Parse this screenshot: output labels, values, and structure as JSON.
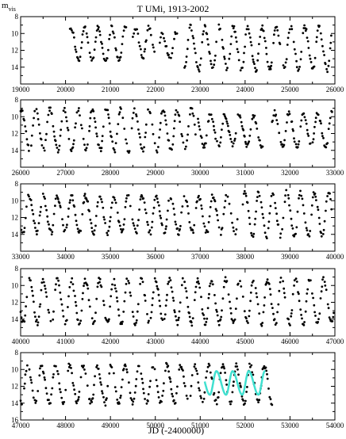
{
  "chart_data": {
    "type": "scatter",
    "title": "T UMi, 1913-2002",
    "ylabel_main": "m",
    "ylabel_sub": "vis",
    "xlabel": "JD (-2400000)",
    "ylim": [
      16,
      8
    ],
    "y_ticks": [
      8,
      10,
      12,
      14,
      16
    ],
    "grid": false,
    "legend": "none",
    "colors": {
      "points": "#000000",
      "model_curve": "#40e0d0"
    },
    "panels": [
      {
        "xlim": [
          19000,
          26000
        ],
        "x_ticks": [
          19000,
          20000,
          21000,
          22000,
          23000,
          24000,
          25000,
          26000
        ],
        "segments": [
          {
            "start": 20100,
            "end": 21350,
            "period": 300,
            "phase": 20420,
            "min": 9.3,
            "max": 13.3
          },
          {
            "start": 21500,
            "end": 22000,
            "period": 300,
            "phase": 21550,
            "min": 9.3,
            "max": 12.8
          },
          {
            "start": 22100,
            "end": 22500,
            "period": 300,
            "phase": 22150,
            "min": 10.0,
            "max": 13.0
          },
          {
            "start": 22650,
            "end": 25920,
            "period": 318,
            "phase": 22780,
            "min": 9.2,
            "max": 14.3
          }
        ]
      },
      {
        "xlim": [
          26000,
          33000
        ],
        "x_ticks": [
          26000,
          27000,
          28000,
          29000,
          30000,
          31000,
          32000,
          33000
        ],
        "segments": [
          {
            "start": 26000,
            "end": 29900,
            "period": 315,
            "phase": 26330,
            "min": 9.1,
            "max": 14.0
          },
          {
            "start": 29950,
            "end": 31400,
            "period": 320,
            "phase": 30220,
            "min": 9.8,
            "max": 13.5
          },
          {
            "start": 31600,
            "end": 32950,
            "period": 320,
            "phase": 31650,
            "min": 9.5,
            "max": 13.6
          }
        ]
      },
      {
        "xlim": [
          33000,
          40000
        ],
        "x_ticks": [
          33000,
          34000,
          35000,
          36000,
          37000,
          38000,
          39000,
          40000
        ],
        "segments": [
          {
            "start": 33000,
            "end": 37850,
            "period": 315,
            "phase": 33180,
            "min": 9.4,
            "max": 13.8
          },
          {
            "start": 37950,
            "end": 39950,
            "period": 310,
            "phase": 38300,
            "min": 9.0,
            "max": 14.2
          }
        ]
      },
      {
        "xlim": [
          40000,
          47000
        ],
        "x_ticks": [
          40000,
          41000,
          42000,
          43000,
          44000,
          45000,
          46000,
          47000
        ],
        "segments": [
          {
            "start": 40000,
            "end": 46980,
            "period": 312,
            "phase": 40190,
            "min": 9.3,
            "max": 14.5
          }
        ]
      },
      {
        "xlim": [
          47000,
          54000
        ],
        "x_ticks": [
          47000,
          48000,
          49000,
          50000,
          51000,
          52000,
          53000,
          54000
        ],
        "segments": [
          {
            "start": 47000,
            "end": 52600,
            "period": 310,
            "phase": 47150,
            "min": 9.5,
            "max": 14.0
          }
        ],
        "model_curve": {
          "start": 51100,
          "end": 52450,
          "period": 360,
          "phase": 51360,
          "min": 10.2,
          "max": 13.0
        }
      }
    ]
  }
}
